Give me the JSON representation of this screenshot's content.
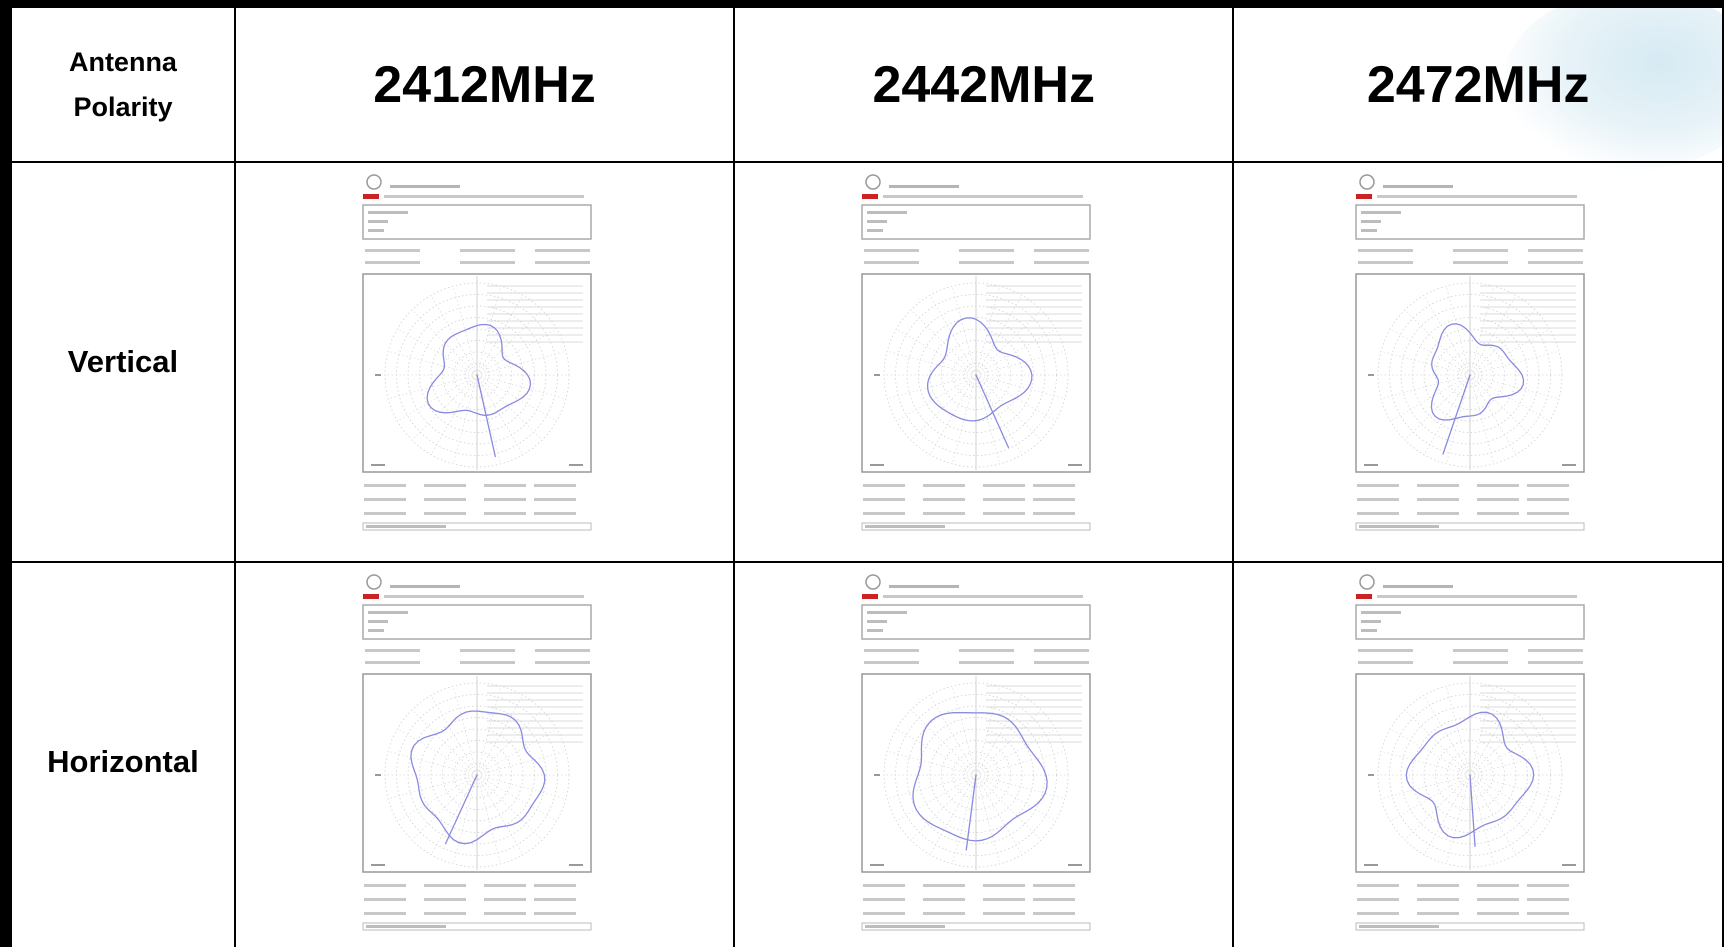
{
  "table": {
    "header": {
      "corner_label": "Antenna\nPolarity",
      "corner_line1": "Antenna",
      "corner_line2": "Polarity",
      "frequencies": [
        "2412MHz",
        "2442MHz",
        "2472MHz"
      ]
    },
    "rows": [
      {
        "polarity": "Vertical",
        "plots": [
          {
            "frequency": "2412MHz",
            "pattern_shape": "vertical-a"
          },
          {
            "frequency": "2442MHz",
            "pattern_shape": "vertical-b"
          },
          {
            "frequency": "2472MHz",
            "pattern_shape": "vertical-c"
          }
        ]
      },
      {
        "polarity": "Horizontal",
        "plots": [
          {
            "frequency": "2412MHz",
            "pattern_shape": "horizontal-a"
          },
          {
            "frequency": "2442MHz",
            "pattern_shape": "horizontal-b"
          },
          {
            "frequency": "2472MHz",
            "pattern_shape": "horizontal-c"
          }
        ]
      }
    ]
  },
  "colors": {
    "grid_border": "#000000",
    "pattern_line": "#8a8ae0",
    "report_red": "#cc2222",
    "thumb_gray": "#c8c8c8",
    "background": "#ffffff",
    "decor_blue": "#d6eaf3"
  }
}
